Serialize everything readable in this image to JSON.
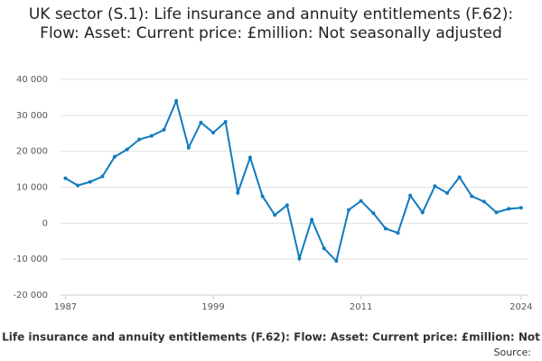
{
  "chart_data": {
    "type": "line",
    "title": "UK sector (S.1): Life insurance and annuity entitlements (F.62): Flow: Asset: Current price: £million: Not seasonally adjusted",
    "x_label": "Life insurance and annuity entitlements (F.62): Flow: Asset: Current price: £million: Not",
    "source": "Source:",
    "x": [
      1987,
      1988,
      1989,
      1990,
      1991,
      1992,
      1993,
      1994,
      1995,
      1996,
      1997,
      1998,
      1999,
      2000,
      2001,
      2002,
      2003,
      2004,
      2005,
      2006,
      2007,
      2008,
      2009,
      2010,
      2011,
      2012,
      2013,
      2014,
      2015,
      2016,
      2017,
      2018,
      2019,
      2020,
      2021,
      2022,
      2023,
      2024
    ],
    "series": [
      {
        "color": "#0f7bbf",
        "values": [
          12500,
          10500,
          11500,
          13000,
          18500,
          20500,
          23300,
          24300,
          26000,
          34000,
          21000,
          28000,
          25200,
          28200,
          8500,
          18300,
          7500,
          2300,
          5000,
          -9800,
          1000,
          -7000,
          -10500,
          3700,
          6200,
          2800,
          -1500,
          -2700,
          7700,
          3000,
          10300,
          8400,
          12800,
          7500,
          6000,
          3000,
          4000,
          4300
        ]
      }
    ],
    "xlim": [
      1986.6,
      2024.6
    ],
    "xticks": [
      1987,
      1999,
      2011,
      2024
    ],
    "ylim": [
      -20000,
      40000
    ],
    "yticks": [
      {
        "value": -20000,
        "label": "-20 000"
      },
      {
        "value": -10000,
        "label": "-10 000"
      },
      0,
      {
        "value": 10000,
        "label": "10 000"
      },
      {
        "value": 20000,
        "label": "20 000"
      },
      {
        "value": 30000,
        "label": "30 000"
      },
      {
        "value": 40000,
        "label": "40 000"
      }
    ],
    "grid": true
  }
}
